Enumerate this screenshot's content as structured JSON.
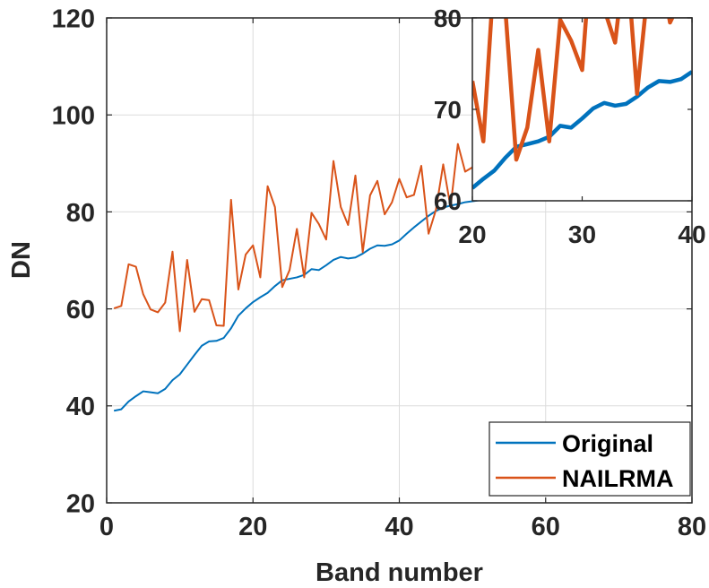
{
  "chart_data": [
    {
      "type": "line",
      "title": "",
      "xlabel": "Band number",
      "ylabel": "DN",
      "xlim": [
        0,
        80
      ],
      "ylim": [
        20,
        120
      ],
      "xticks": [
        "0",
        "20",
        "40",
        "60",
        "80"
      ],
      "yticks": [
        "20",
        "40",
        "60",
        "80",
        "100",
        "120"
      ],
      "grid": true,
      "legend_position": "bottom-right",
      "series": [
        {
          "name": "Original",
          "color": "#0072BD",
          "x": [
            1,
            2,
            3,
            4,
            5,
            6,
            7,
            8,
            9,
            10,
            11,
            12,
            13,
            14,
            15,
            16,
            17,
            18,
            19,
            20,
            21,
            22,
            23,
            24,
            25,
            26,
            27,
            28,
            29,
            30,
            31,
            32,
            33,
            34,
            35,
            36,
            37,
            38,
            39,
            40,
            41,
            42,
            43,
            44,
            45,
            46,
            47,
            48,
            49,
            50,
            51
          ],
          "y": [
            39,
            39.3,
            40.9,
            42,
            43,
            42.8,
            42.6,
            43.5,
            45.3,
            46.5,
            48.5,
            50.5,
            52.4,
            53.3,
            53.4,
            54,
            56,
            58.6,
            60.1,
            61.4,
            62.4,
            63.3,
            64.7,
            65.9,
            66.2,
            66.5,
            67,
            68.2,
            68,
            69,
            70.1,
            70.7,
            70.4,
            70.6,
            71.4,
            72.4,
            73.1,
            73,
            73.3,
            74.1,
            75.5,
            76.8,
            78,
            79.2,
            80.2,
            80.9,
            81.3,
            81.6,
            82,
            82.2,
            82.4
          ]
        },
        {
          "name": "NAILRMA",
          "color": "#D95319",
          "x": [
            1,
            2,
            3,
            4,
            5,
            6,
            7,
            8,
            9,
            10,
            11,
            12,
            13,
            14,
            15,
            16,
            17,
            18,
            19,
            20,
            21,
            22,
            23,
            24,
            25,
            26,
            27,
            28,
            29,
            30,
            31,
            32,
            33,
            34,
            35,
            36,
            37,
            38,
            39,
            40,
            41,
            42,
            43,
            44,
            45,
            46,
            47,
            48,
            49,
            50,
            51
          ],
          "y": [
            60.1,
            60.6,
            69.2,
            68.7,
            63,
            59.9,
            59.3,
            61.3,
            71.8,
            55.4,
            70.1,
            59.4,
            62,
            61.8,
            56.6,
            56.5,
            82.5,
            64,
            71.2,
            73.1,
            66.5,
            85.3,
            81,
            64.5,
            68,
            76.5,
            66.5,
            79.8,
            77.5,
            74.3,
            90.5,
            81,
            77.3,
            87.5,
            71.7,
            83.4,
            86.4,
            79.5,
            82,
            86.8,
            83,
            83.5,
            89.5,
            75.5,
            80.4,
            89.8,
            81,
            94,
            88.3,
            89.2,
            92
          ]
        }
      ]
    },
    {
      "type": "line",
      "title": "",
      "xlabel": "",
      "ylabel": "",
      "xlim": [
        20,
        40
      ],
      "ylim": [
        60,
        80
      ],
      "xticks": [
        "20",
        "30",
        "40"
      ],
      "yticks": [
        "60",
        "70",
        "80"
      ],
      "grid": false,
      "series": [
        {
          "color": "#0072BD",
          "x": [
            20,
            21,
            22,
            23,
            24,
            25,
            26,
            27,
            28,
            29,
            30,
            31,
            32,
            33,
            34,
            35,
            36,
            37,
            38,
            39,
            40
          ],
          "y": [
            61.4,
            62.4,
            63.3,
            64.7,
            65.9,
            66.2,
            66.5,
            67,
            68.2,
            68,
            69,
            70.1,
            70.7,
            70.4,
            70.6,
            71.4,
            72.4,
            73.1,
            73,
            73.3,
            74.1
          ]
        },
        {
          "color": "#D95319",
          "x": [
            20,
            21,
            22,
            23,
            24,
            25,
            26,
            27,
            28,
            29,
            30,
            31,
            32,
            33,
            34,
            35,
            36,
            37,
            38,
            39,
            40
          ],
          "y": [
            73.1,
            66.5,
            85.3,
            81,
            64.5,
            68,
            76.5,
            66.5,
            79.8,
            77.5,
            74.3,
            90.5,
            81,
            77.3,
            87.5,
            71.7,
            83.4,
            86.4,
            79.5,
            82,
            86.8
          ]
        }
      ]
    }
  ]
}
